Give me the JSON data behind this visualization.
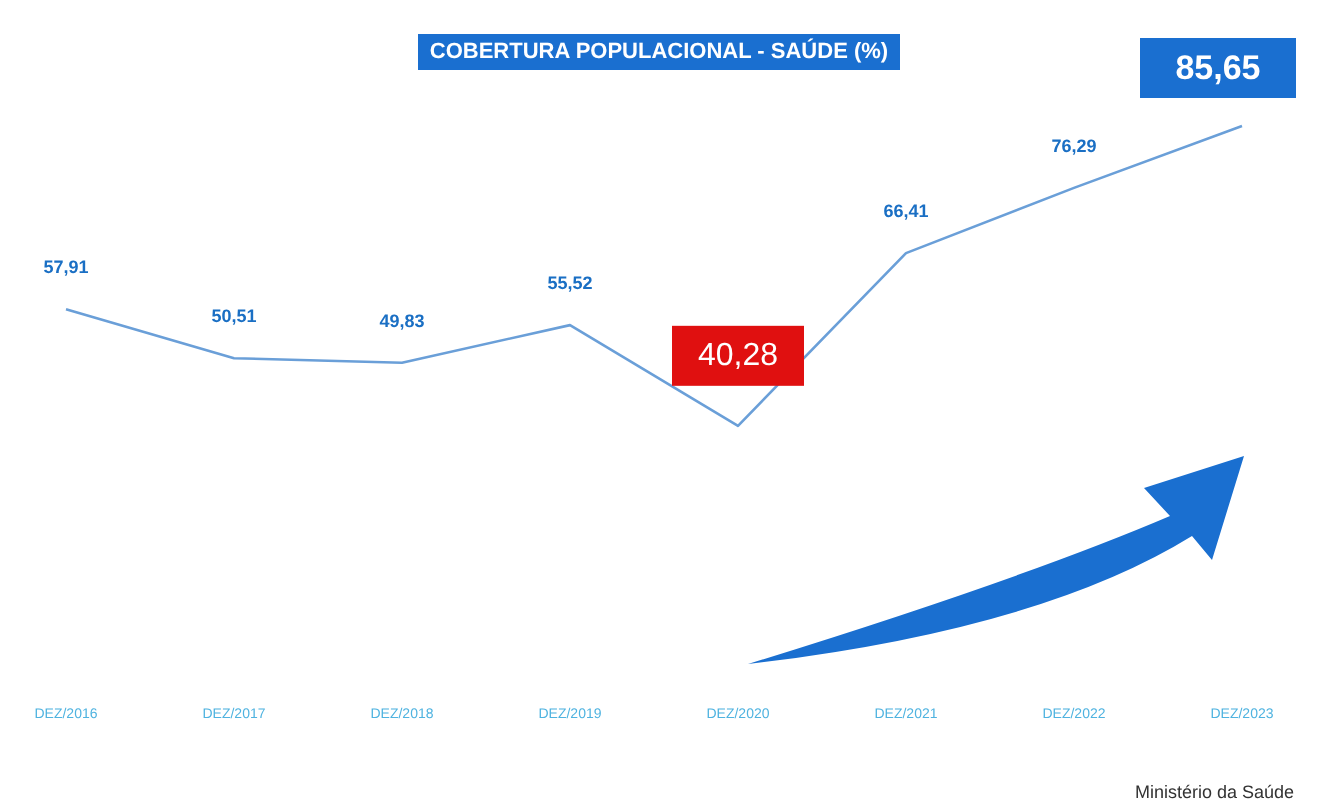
{
  "chart_data": {
    "type": "line",
    "title": "COBERTURA POPULACIONAL - SAÚDE (%)",
    "categories": [
      "DEZ/2016",
      "DEZ/2017",
      "DEZ/2018",
      "DEZ/2019",
      "DEZ/2020",
      "DEZ/2021",
      "DEZ/2022",
      "DEZ/2023"
    ],
    "series": [
      {
        "color": "#6a9fd8",
        "values": [
          57.91,
          50.51,
          49.83,
          55.52,
          40.28,
          66.41,
          76.29,
          85.65
        ],
        "value_labels": [
          "57,91",
          "50,51",
          "49,83",
          "55,52",
          "40,28",
          "66,41",
          "76,29",
          "85,65"
        ]
      }
    ],
    "marker": "none",
    "annotations": [
      "Ministério da Saúde"
    ]
  }
}
